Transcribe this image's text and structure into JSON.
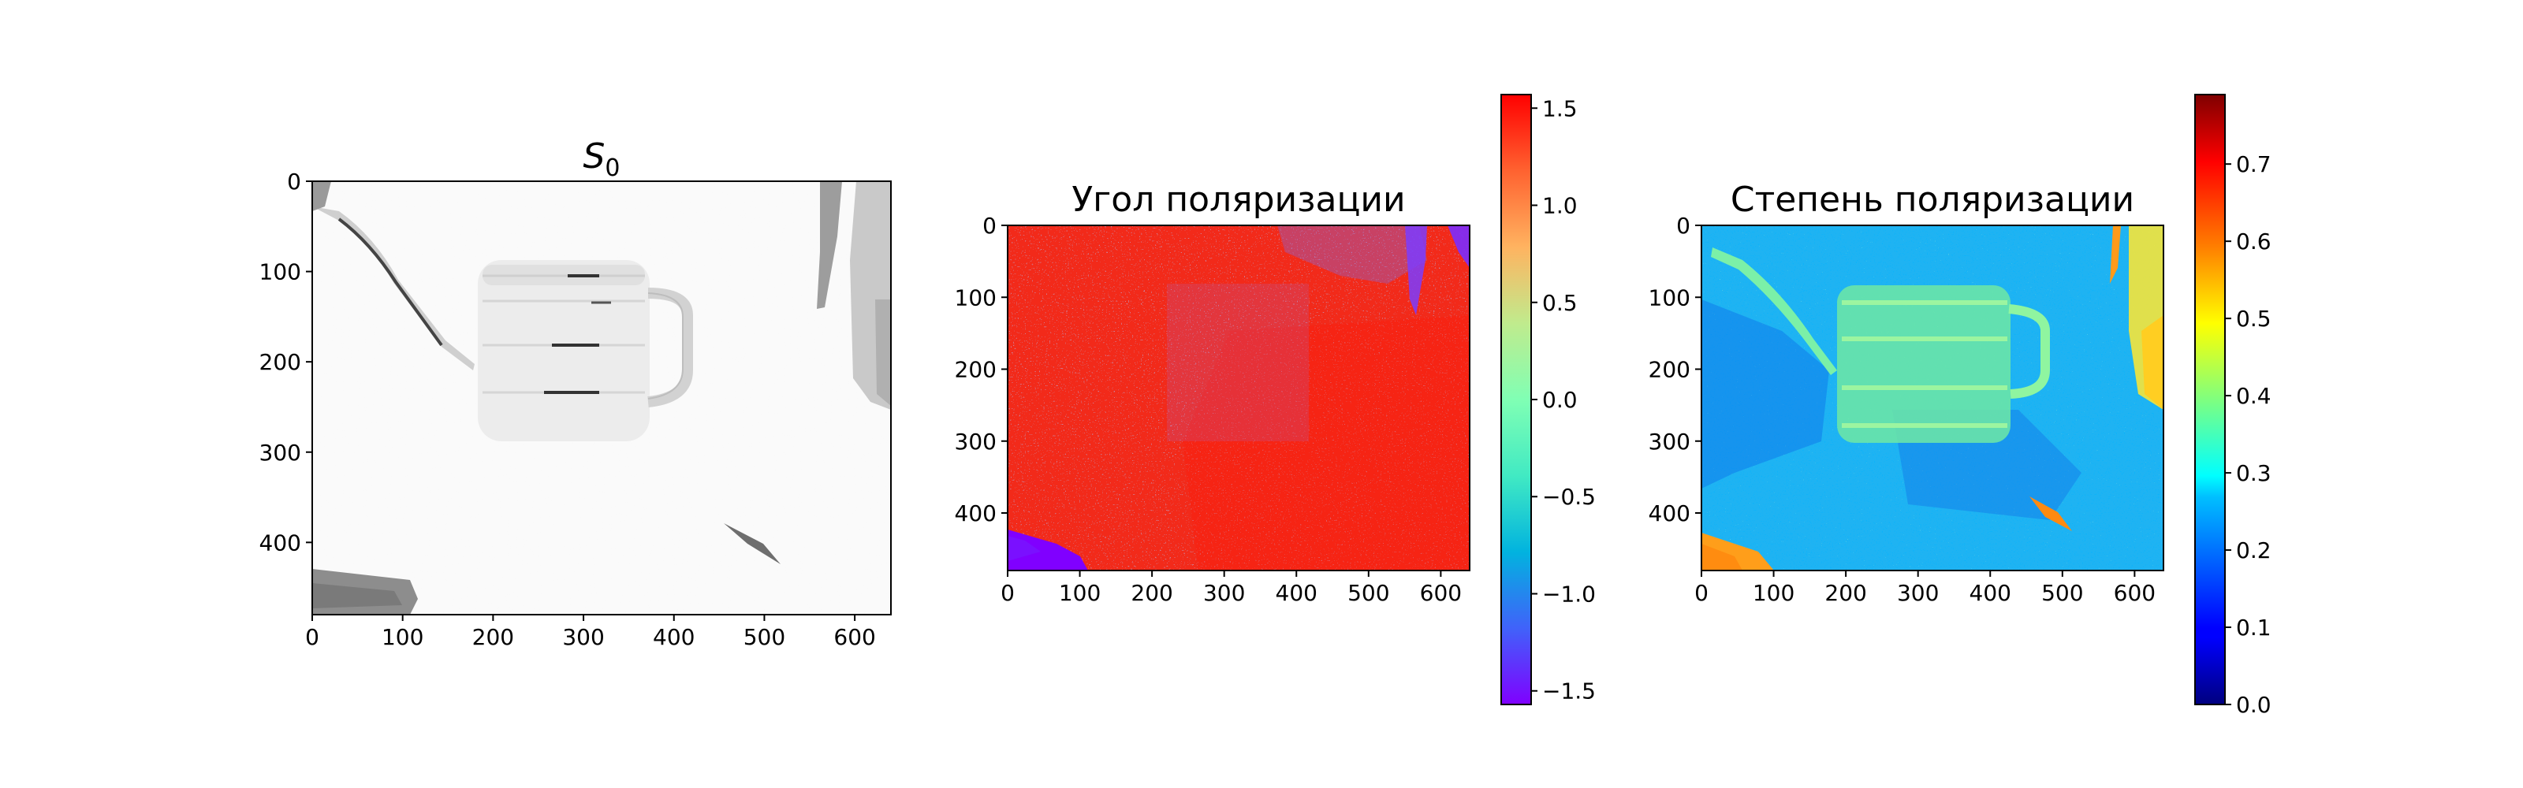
{
  "chart_data": [
    {
      "type": "heatmap",
      "title_base": "S",
      "title_sub": "0",
      "colormap": "gray_r",
      "x_ticks": [
        "0",
        "100",
        "200",
        "300",
        "400",
        "500",
        "600"
      ],
      "y_ticks": [
        "0",
        "100",
        "200",
        "300",
        "400"
      ],
      "xlim": [
        0,
        640
      ],
      "ylim": [
        480,
        0
      ]
    },
    {
      "type": "heatmap",
      "title": "Угол поляризации",
      "colormap": "rainbow",
      "x_ticks": [
        "0",
        "100",
        "200",
        "300",
        "400",
        "500",
        "600"
      ],
      "y_ticks": [
        "0",
        "100",
        "200",
        "300",
        "400"
      ],
      "xlim": [
        0,
        640
      ],
      "ylim": [
        480,
        0
      ],
      "colorbar": {
        "range": [
          -1.57,
          1.57
        ],
        "ticks": [
          "−1.5",
          "−1.0",
          "−0.5",
          "0.0",
          "0.5",
          "1.0",
          "1.5"
        ]
      }
    },
    {
      "type": "heatmap",
      "title": "Степень поляризации",
      "colormap": "jet",
      "x_ticks": [
        "0",
        "100",
        "200",
        "300",
        "400",
        "500",
        "600"
      ],
      "y_ticks": [
        "0",
        "100",
        "200",
        "300",
        "400"
      ],
      "xlim": [
        0,
        640
      ],
      "ylim": [
        480,
        0
      ],
      "colorbar": {
        "range": [
          0,
          0.79
        ],
        "ticks": [
          "0.0",
          "0.1",
          "0.2",
          "0.3",
          "0.4",
          "0.5",
          "0.6",
          "0.7"
        ]
      }
    }
  ],
  "colors": {
    "rainbow": [
      "#8000ff",
      "#4062fa",
      "#01b3df",
      "#41eac3",
      "#80ffb4",
      "#c0eb8d",
      "#ffb360",
      "#ff6230",
      "#ff0000"
    ],
    "jet": [
      "#00007f",
      "#0000ff",
      "#007fff",
      "#00ffff",
      "#7fff7f",
      "#ffff00",
      "#ff7f00",
      "#ff0000",
      "#7f0000"
    ]
  }
}
